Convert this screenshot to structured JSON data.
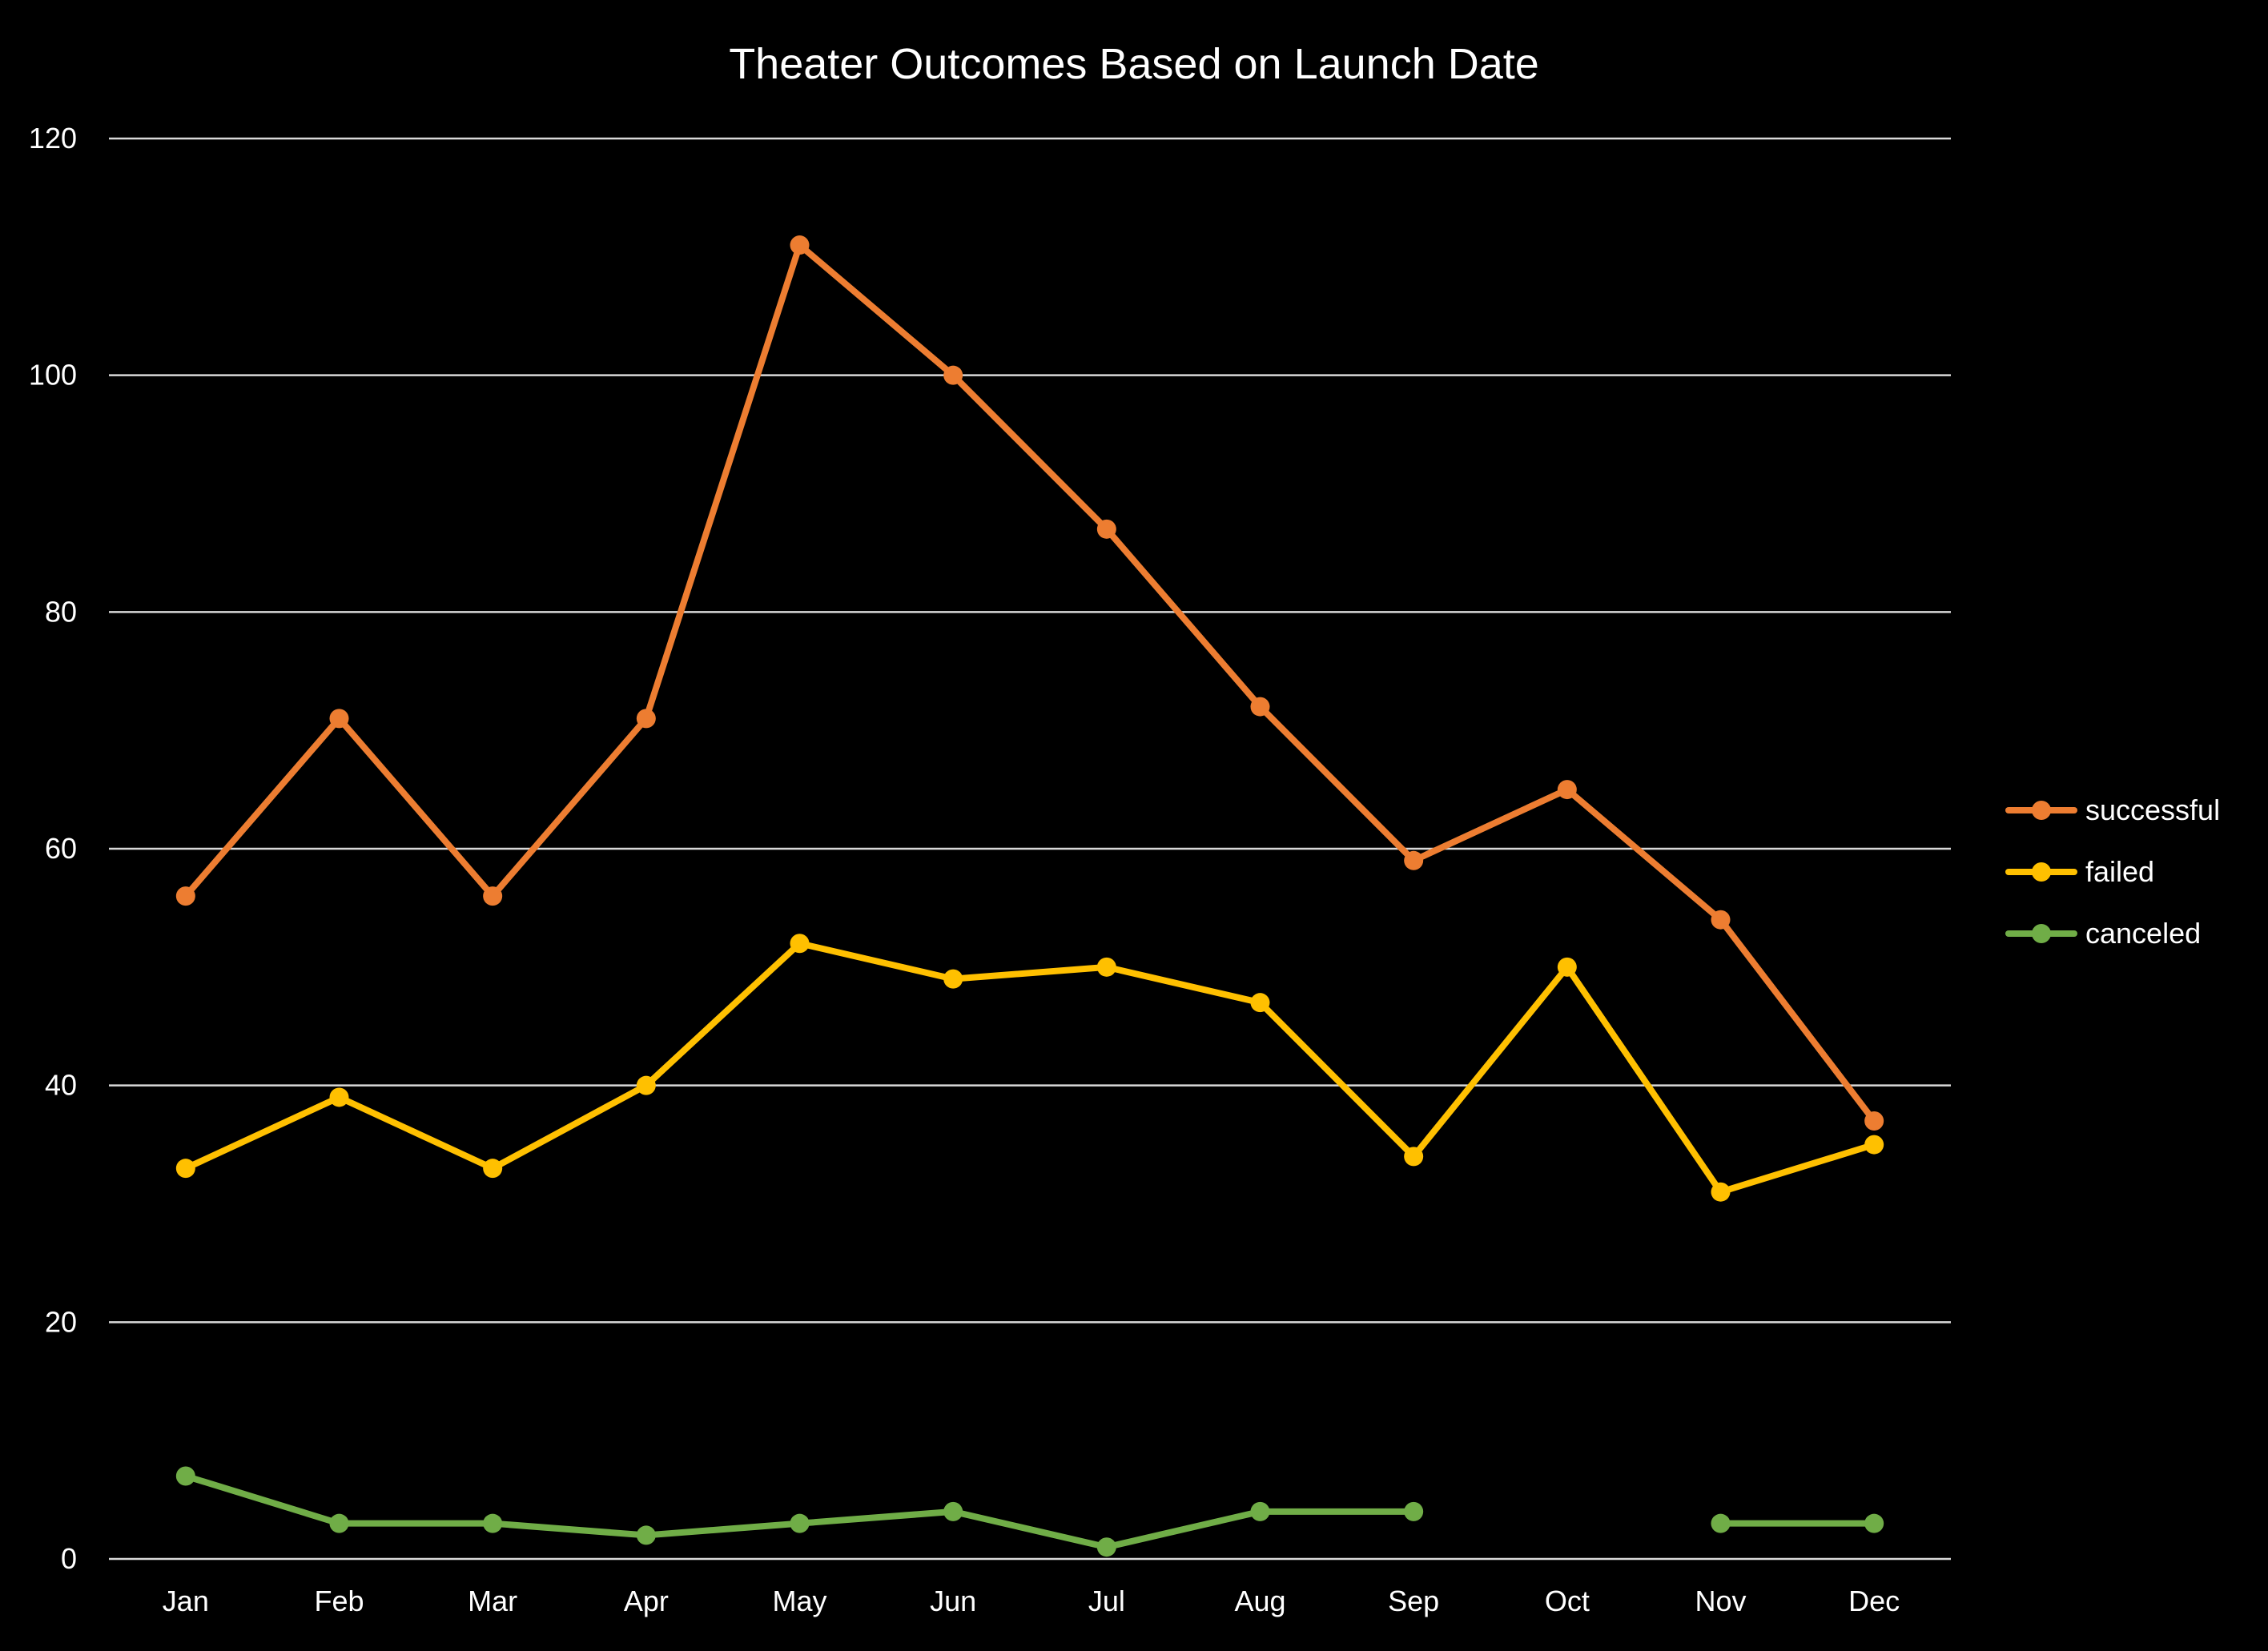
{
  "chart_data": {
    "type": "line",
    "title": "Theater Outcomes Based on Launch Date",
    "xlabel": "",
    "ylabel": "",
    "categories": [
      "Jan",
      "Feb",
      "Mar",
      "Apr",
      "May",
      "Jun",
      "Jul",
      "Aug",
      "Sep",
      "Oct",
      "Nov",
      "Dec"
    ],
    "ylim": [
      0,
      120
    ],
    "yticks": [
      0,
      20,
      40,
      60,
      80,
      100,
      120
    ],
    "grid": true,
    "legend_position": "right",
    "series": [
      {
        "name": "successful",
        "color": "#ED7D31",
        "values": [
          56,
          71,
          56,
          71,
          111,
          100,
          87,
          72,
          59,
          65,
          54,
          37
        ]
      },
      {
        "name": "failed",
        "color": "#FFC000",
        "values": [
          33,
          39,
          33,
          40,
          52,
          49,
          50,
          47,
          34,
          50,
          31,
          35
        ]
      },
      {
        "name": "canceled",
        "color": "#70AD47",
        "values": [
          7,
          3,
          3,
          2,
          3,
          4,
          1,
          4,
          4,
          null,
          3,
          3
        ]
      }
    ]
  }
}
